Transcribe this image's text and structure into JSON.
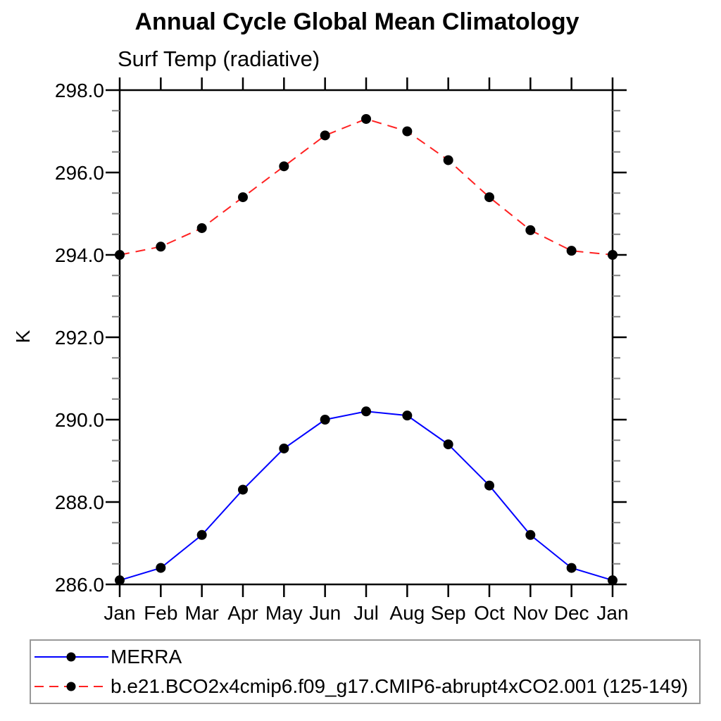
{
  "chart_data": {
    "type": "line",
    "title": "Annual Cycle Global Mean Climatology",
    "subtitle": "Surf Temp (radiative)",
    "ylabel": "K",
    "xlabel": "",
    "categories": [
      "Jan",
      "Feb",
      "Mar",
      "Apr",
      "May",
      "Jun",
      "Jul",
      "Aug",
      "Sep",
      "Oct",
      "Nov",
      "Dec",
      "Jan"
    ],
    "ylim": [
      286.0,
      298.0
    ],
    "ytick_interval": 2.0,
    "ytick_minor_interval": 0.5,
    "ytick_labels": [
      "286.0",
      "288.0",
      "290.0",
      "292.0",
      "294.0",
      "296.0",
      "298.0"
    ],
    "grid": false,
    "legend_position": "bottom-left-box",
    "axis_color": "#000000",
    "minor_tick_color": "#808080",
    "marker_color": "#000000",
    "series": [
      {
        "name": "MERRA",
        "color": "#0000ff",
        "line_style": "solid",
        "marker": "filled-circle",
        "values": [
          286.1,
          286.4,
          287.2,
          288.3,
          289.3,
          290.0,
          290.2,
          290.1,
          289.4,
          288.4,
          287.2,
          286.4,
          286.1
        ]
      },
      {
        "name": "b.e21.BCO2x4cmip6.f09_g17.CMIP6-abrupt4xCO2.001 (125-149)",
        "color": "#ff2222",
        "line_style": "dashed",
        "marker": "filled-circle",
        "values": [
          294.0,
          294.2,
          294.65,
          295.4,
          296.15,
          296.9,
          297.3,
          297.0,
          296.3,
          295.4,
          294.6,
          294.1,
          294.0
        ]
      }
    ]
  }
}
